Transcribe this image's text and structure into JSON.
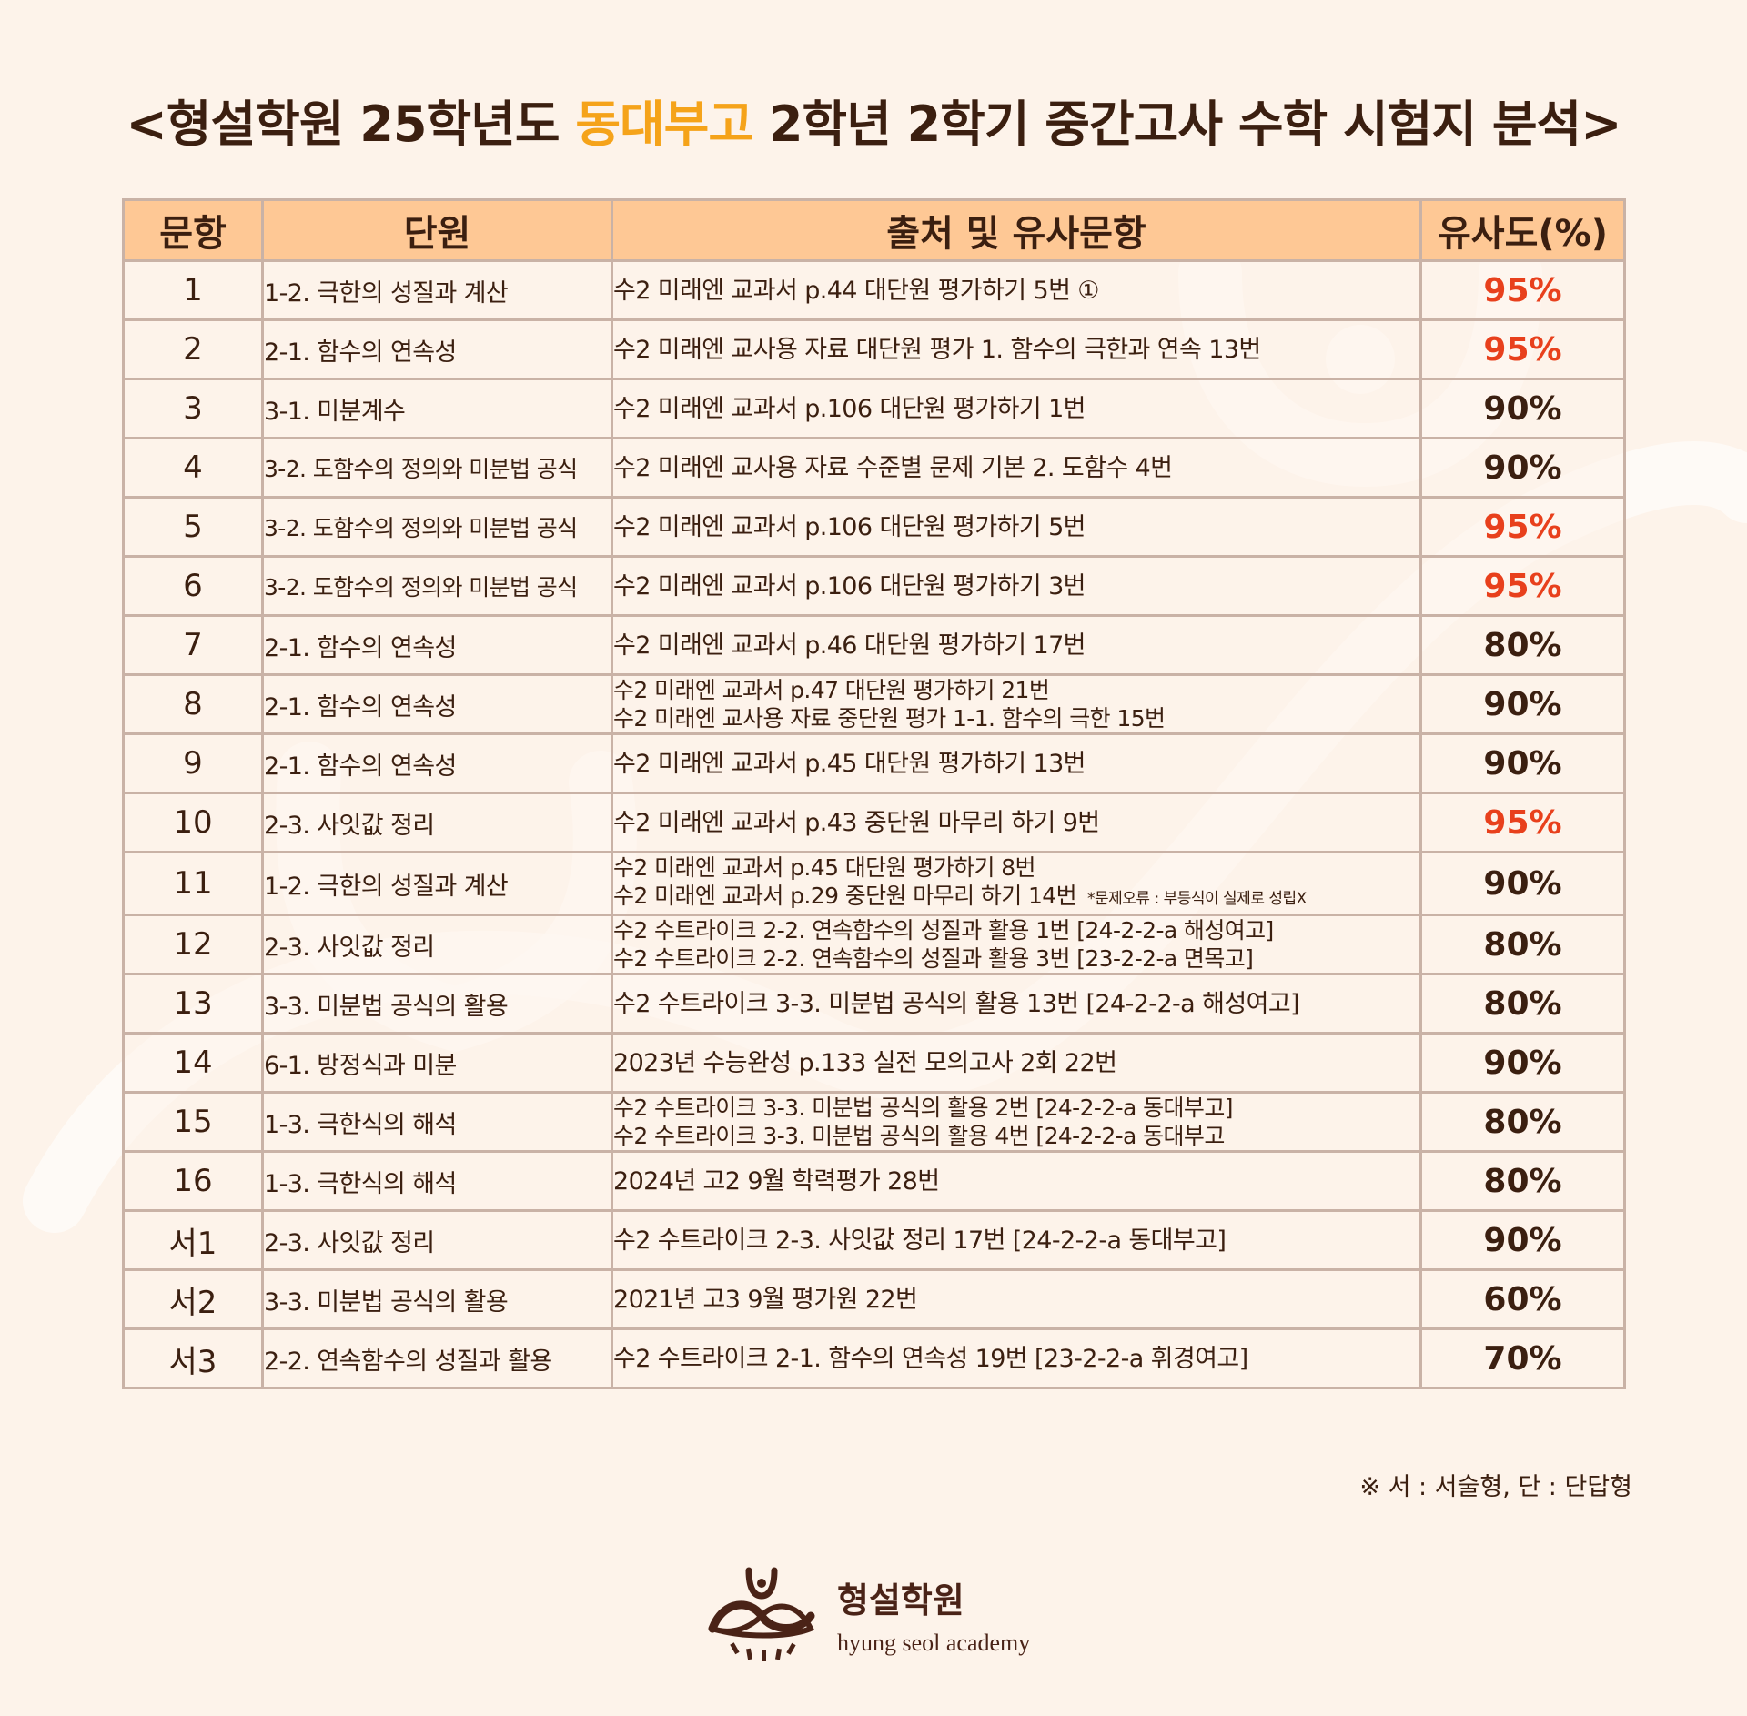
{
  "title": {
    "prefix": "<형설학원 25학년도 ",
    "highlight": "동대부고",
    "suffix": " 2학년 2학기 중간고사 수학 시험지 분석>"
  },
  "colors": {
    "background": "#fdf3ea",
    "header_bg": "#fec895",
    "text": "#3b1f10",
    "highlight": "#f5a31a",
    "high_similarity": "#e8401c",
    "border": "#c9b2a6"
  },
  "table": {
    "headers": [
      "문항",
      "단원",
      "출처 및 유사문항",
      "유사도(%)"
    ],
    "rows": [
      {
        "no": "1",
        "unit": "1-2. 극한의 성질과 계산",
        "sources": [
          "수2 미래엔 교과서 p.44 대단원 평가하기 5번 ①"
        ],
        "note": "",
        "similarity": "95%",
        "high": true
      },
      {
        "no": "2",
        "unit": "2-1. 함수의 연속성",
        "sources": [
          "수2 미래엔 교사용 자료 대단원 평가 1. 함수의 극한과 연속 13번"
        ],
        "note": "",
        "similarity": "95%",
        "high": true
      },
      {
        "no": "3",
        "unit": "3-1. 미분계수",
        "sources": [
          "수2 미래엔 교과서 p.106 대단원 평가하기 1번"
        ],
        "note": "",
        "similarity": "90%",
        "high": false
      },
      {
        "no": "4",
        "unit": "3-2. 도함수의 정의와 미분법 공식",
        "sources": [
          "수2 미래엔 교사용 자료 수준별 문제 기본 2. 도함수 4번"
        ],
        "note": "",
        "similarity": "90%",
        "high": false
      },
      {
        "no": "5",
        "unit": "3-2. 도함수의 정의와 미분법 공식",
        "sources": [
          "수2 미래엔 교과서 p.106 대단원 평가하기 5번"
        ],
        "note": "",
        "similarity": "95%",
        "high": true
      },
      {
        "no": "6",
        "unit": "3-2. 도함수의 정의와 미분법 공식",
        "sources": [
          "수2 미래엔 교과서 p.106 대단원 평가하기 3번"
        ],
        "note": "",
        "similarity": "95%",
        "high": true
      },
      {
        "no": "7",
        "unit": "2-1. 함수의 연속성",
        "sources": [
          "수2 미래엔 교과서 p.46 대단원 평가하기 17번"
        ],
        "note": "",
        "similarity": "80%",
        "high": false
      },
      {
        "no": "8",
        "unit": "2-1. 함수의 연속성",
        "sources": [
          "수2 미래엔 교과서 p.47 대단원 평가하기 21번",
          "수2 미래엔 교사용 자료 중단원 평가 1-1. 함수의 극한 15번"
        ],
        "note": "",
        "similarity": "90%",
        "high": false
      },
      {
        "no": "9",
        "unit": "2-1. 함수의 연속성",
        "sources": [
          "수2 미래엔 교과서 p.45 대단원 평가하기 13번"
        ],
        "note": "",
        "similarity": "90%",
        "high": false
      },
      {
        "no": "10",
        "unit": "2-3. 사잇값 정리",
        "sources": [
          "수2 미래엔 교과서 p.43 중단원 마무리 하기 9번"
        ],
        "note": "",
        "similarity": "95%",
        "high": true
      },
      {
        "no": "11",
        "unit": "1-2. 극한의 성질과 계산",
        "sources": [
          "수2 미래엔 교과서 p.45 대단원 평가하기 8번",
          "수2 미래엔 교과서 p.29 중단원 마무리 하기 14번"
        ],
        "note": "*문제오류 : 부등식이 실제로 성립X",
        "similarity": "90%",
        "high": false
      },
      {
        "no": "12",
        "unit": "2-3. 사잇값 정리",
        "sources": [
          "수2 수트라이크 2-2. 연속함수의 성질과 활용 1번 [24-2-2-a 해성여고]",
          "수2 수트라이크 2-2. 연속함수의 성질과 활용 3번 [23-2-2-a 면목고]"
        ],
        "note": "",
        "similarity": "80%",
        "high": false
      },
      {
        "no": "13",
        "unit": "3-3. 미분법 공식의 활용",
        "sources": [
          "수2 수트라이크 3-3. 미분법 공식의 활용 13번 [24-2-2-a 해성여고]"
        ],
        "note": "",
        "similarity": "80%",
        "high": false
      },
      {
        "no": "14",
        "unit": "6-1. 방정식과 미분",
        "sources": [
          "2023년 수능완성 p.133 실전 모의고사 2회 22번"
        ],
        "note": "",
        "similarity": "90%",
        "high": false
      },
      {
        "no": "15",
        "unit": "1-3. 극한식의 해석",
        "sources": [
          "수2 수트라이크 3-3. 미분법 공식의 활용 2번 [24-2-2-a 동대부고]",
          "수2 수트라이크 3-3. 미분법 공식의 활용 4번 [24-2-2-a 동대부고"
        ],
        "note": "",
        "similarity": "80%",
        "high": false
      },
      {
        "no": "16",
        "unit": "1-3. 극한식의 해석",
        "sources": [
          "2024년 고2 9월 학력평가 28번"
        ],
        "note": "",
        "similarity": "80%",
        "high": false
      },
      {
        "no": "서1",
        "unit": "2-3. 사잇값 정리",
        "sources": [
          "수2 수트라이크 2-3. 사잇값 정리 17번 [24-2-2-a 동대부고]"
        ],
        "note": "",
        "similarity": "90%",
        "high": false
      },
      {
        "no": "서2",
        "unit": "3-3. 미분법 공식의 활용",
        "sources": [
          "2021년 고3 9월 평가원 22번"
        ],
        "note": "",
        "similarity": "60%",
        "high": false
      },
      {
        "no": "서3",
        "unit": "2-2. 연속함수의 성질과 활용",
        "sources": [
          "수2 수트라이크 2-1. 함수의 연속성 19번 [23-2-2-a 휘경여고]"
        ],
        "note": "",
        "similarity": "70%",
        "high": false
      }
    ]
  },
  "footnote": "※ 서 : 서술형, 단 : 단답형",
  "logo": {
    "icon": "hyungseol-logo-icon",
    "name_ko": "형설학원",
    "name_en": "hyung seol academy"
  }
}
